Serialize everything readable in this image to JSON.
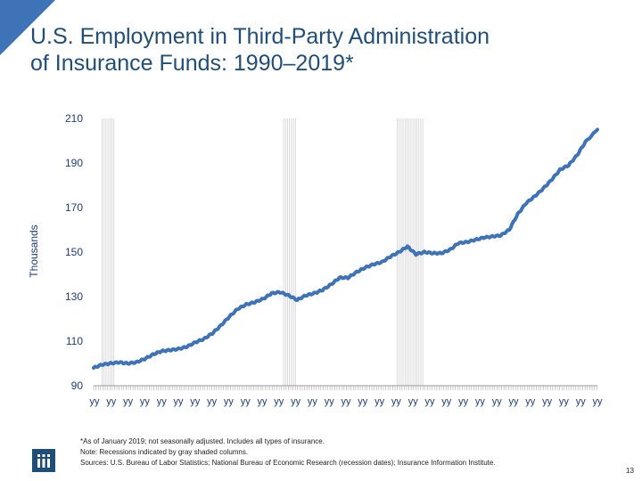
{
  "slide": {
    "title_line1": "U.S. Employment in Third-Party Administration",
    "title_line2": "of Insurance Funds: 1990–2019*",
    "page_number": "13"
  },
  "notes": {
    "line1": "*As of January 2019; not seasonally adjusted. Includes all types of insurance.",
    "line2": "Note: Recessions indicated by gray shaded columns.",
    "line3": "Sources: U.S. Bureau of Labor Statistics; National Bureau of Economic Research (recession dates); Insurance Information Institute."
  },
  "colors": {
    "line": "#3f73b8",
    "corner": "#3f73b8",
    "title": "#1f4e79",
    "recession": "#d0d0d0",
    "grid": "#d9d9d9"
  },
  "icons": {
    "logo": "iii-logo"
  },
  "chart_data": {
    "type": "line",
    "title": "U.S. Employment in Third-Party Administration of Insurance Funds: 1990–2019*",
    "xlabel": "",
    "ylabel": "Thousands",
    "ylim": [
      90,
      210
    ],
    "yticks": [
      210,
      190,
      170,
      150,
      130,
      110,
      90
    ],
    "x_tick_label": "yy",
    "x_tick_count": 31,
    "grid": false,
    "legend": "none",
    "recessions": [
      [
        1990.5,
        1991.2
      ],
      [
        2001.2,
        2001.9
      ],
      [
        2007.9,
        2009.5
      ]
    ],
    "series": [
      {
        "x": [
          1990,
          1990.5,
          1991,
          1991.5,
          1992,
          1992.5,
          1993,
          1993.5,
          1994,
          1994.5,
          1995,
          1995.5,
          1996,
          1996.5,
          1997,
          1997.5,
          1998,
          1998.5,
          1999,
          1999.5,
          2000,
          2000.5,
          2001,
          2001.5,
          2002,
          2002.5,
          2003,
          2003.5,
          2004,
          2004.5,
          2005,
          2005.5,
          2006,
          2006.5,
          2007,
          2007.5,
          2008,
          2008.5,
          2009,
          2009.5,
          2010,
          2010.5,
          2011,
          2011.5,
          2012,
          2012.5,
          2013,
          2013.5,
          2014,
          2014.5,
          2015,
          2015.5,
          2016,
          2016.5,
          2017,
          2017.5,
          2018,
          2018.5,
          2019
        ],
        "values": [
          98,
          99.5,
          100,
          100.5,
          100,
          100.5,
          102,
          104,
          105.5,
          106,
          106.5,
          107.5,
          109.5,
          111,
          113.5,
          117,
          121,
          124.5,
          126.5,
          127.5,
          129,
          131.5,
          132,
          130.5,
          128.5,
          130.5,
          131.5,
          133,
          135.5,
          138.5,
          138.5,
          141,
          143,
          144.5,
          145.5,
          148,
          150,
          152.5,
          149,
          150,
          149.5,
          149.5,
          151,
          154,
          154.5,
          155.5,
          156.5,
          157,
          157.5,
          160,
          167,
          172,
          175,
          178.5,
          182.5,
          187,
          189,
          193.5,
          199.5
        ]
      }
    ],
    "x_end": 2019.7,
    "y_end": 205
  }
}
